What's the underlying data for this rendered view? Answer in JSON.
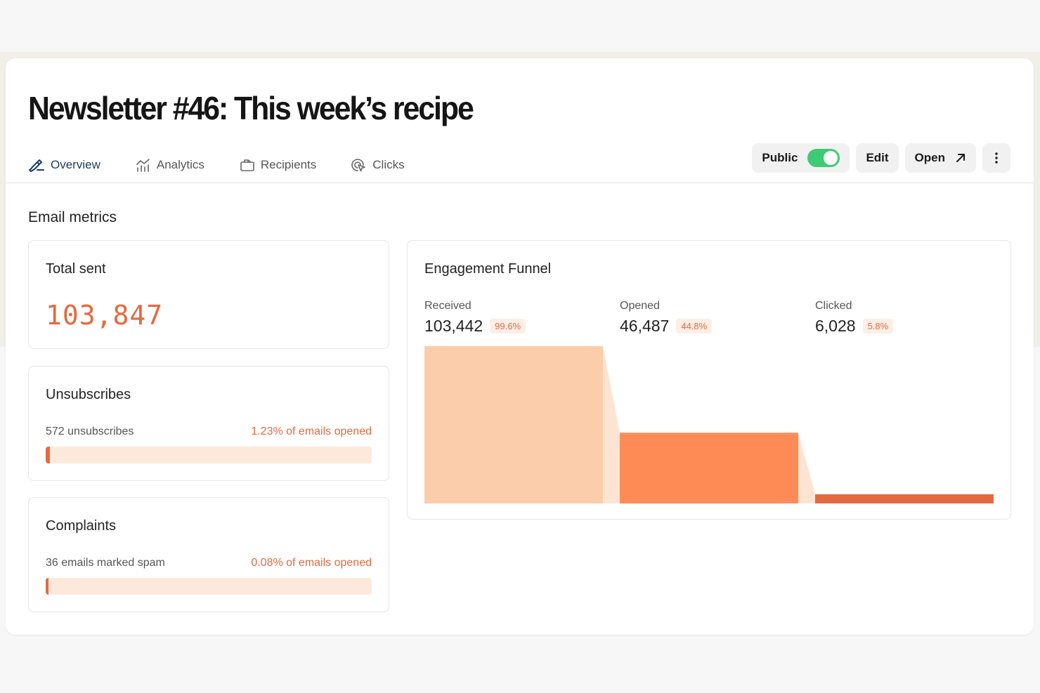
{
  "header": {
    "title": "Newsletter #46: This week’s recipe"
  },
  "tabs": [
    {
      "label": "Overview",
      "icon": "pen-icon",
      "active": true
    },
    {
      "label": "Analytics",
      "icon": "chart-icon",
      "active": false
    },
    {
      "label": "Recipients",
      "icon": "inbox-icon",
      "active": false
    },
    {
      "label": "Clicks",
      "icon": "cursor-click-icon",
      "active": false
    }
  ],
  "actions": {
    "public_label": "Public",
    "public_on": true,
    "edit_label": "Edit",
    "open_label": "Open"
  },
  "section": {
    "title": "Email metrics"
  },
  "total_sent": {
    "title": "Total sent",
    "value": "103,847"
  },
  "unsubscribes": {
    "title": "Unsubscribes",
    "count_text": "572 unsubscribes",
    "percent_text": "1.23% of emails opened",
    "fraction": 0.0123
  },
  "complaints": {
    "title": "Complaints",
    "count_text": "36 emails marked spam",
    "percent_text": "0.08% of emails opened",
    "fraction": 0.0008
  },
  "chart_data": {
    "type": "bar",
    "title": "Engagement Funnel",
    "categories": [
      "Received",
      "Opened",
      "Clicked"
    ],
    "values": [
      103442,
      46487,
      6028
    ],
    "value_labels": [
      "103,442",
      "46,487",
      "6,028"
    ],
    "percent_labels": [
      "99.6%",
      "44.8%",
      "5.8%"
    ],
    "colors": [
      "#fccdaa",
      "#fe8b56",
      "#e5693f"
    ],
    "connector_color": "#fde4d2"
  }
}
